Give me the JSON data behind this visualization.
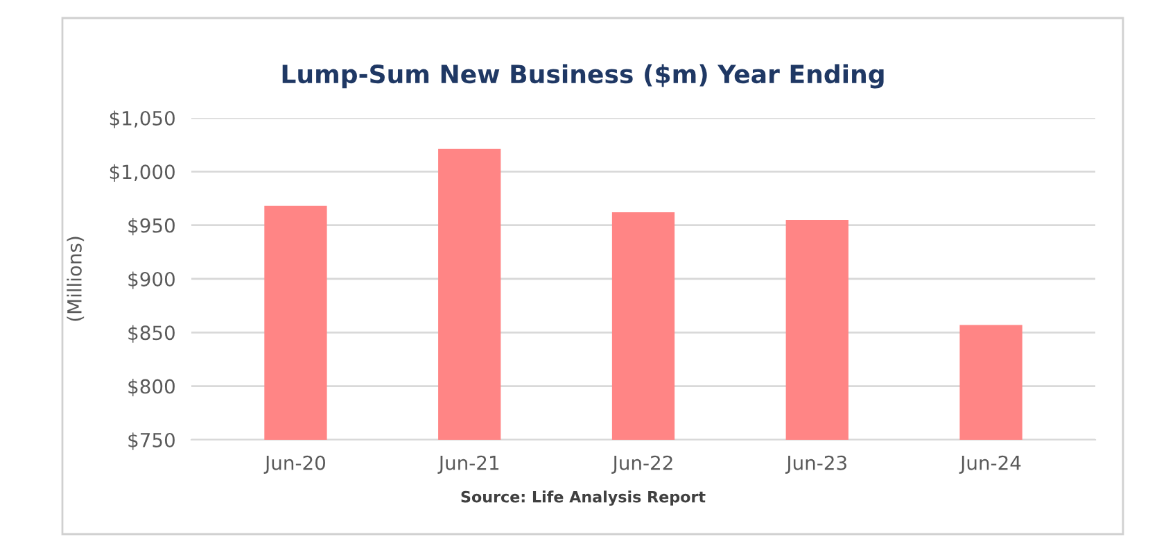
{
  "chart_data": {
    "type": "bar",
    "title": "Lump-Sum New Business ($m) Year Ending",
    "ylabel": "(Millions)",
    "categories": [
      "Jun-20",
      "Jun-21",
      "Jun-22",
      "Jun-23",
      "Jun-24"
    ],
    "values": [
      968,
      1021,
      962,
      955,
      857
    ],
    "color": "#ff8585",
    "ylim": [
      750,
      1050
    ],
    "yticks": [
      {
        "value": 750,
        "label": "$750"
      },
      {
        "value": 800,
        "label": "$800"
      },
      {
        "value": 850,
        "label": "$850"
      },
      {
        "value": 900,
        "label": "$900"
      },
      {
        "value": 950,
        "label": "$950"
      },
      {
        "value": 1000,
        "label": "$1,000"
      },
      {
        "value": 1050,
        "label": "$1,050"
      }
    ],
    "grid": "y",
    "annotations": [
      "Source: Life Analysis Report"
    ]
  }
}
